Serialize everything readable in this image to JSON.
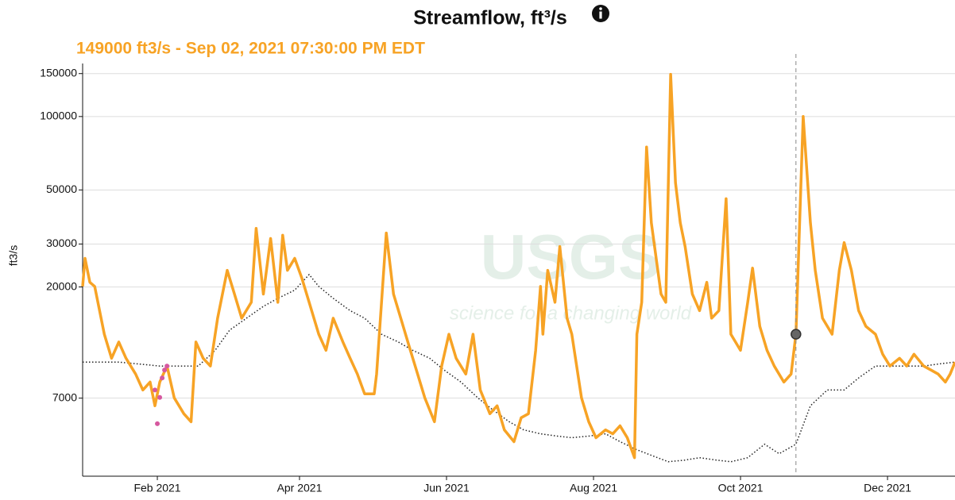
{
  "chart_data": {
    "type": "line",
    "title": "Streamflow, ft³/s",
    "subtitle": "149000 ft3/s - Sep 02, 2021 07:30:00 PM EDT",
    "ylabel": "ft3/s",
    "yscale": "log",
    "grid": true,
    "xlim": [
      0,
      362
    ],
    "ylim": [
      3350,
      165000
    ],
    "yticks": [
      7000,
      20000,
      30000,
      50000,
      100000,
      150000
    ],
    "xticks": [
      {
        "value": 31,
        "label": "Feb 2021"
      },
      {
        "value": 90,
        "label": "Apr 2021"
      },
      {
        "value": 151,
        "label": "Jun 2021"
      },
      {
        "value": 212,
        "label": "Aug 2021"
      },
      {
        "value": 273,
        "label": "Oct 2021"
      },
      {
        "value": 334,
        "label": "Dec 2021"
      }
    ],
    "watermark": {
      "logo": "USGS",
      "tagline": "science for a changing world"
    },
    "highlight": {
      "series": 0,
      "index": 103
    },
    "series": [
      {
        "color": "#f7a325",
        "style": "solid",
        "x": [
          0,
          1,
          3,
          5,
          9,
          12,
          15,
          18,
          22,
          25,
          28,
          30,
          32,
          35,
          38,
          42,
          45,
          47,
          50,
          53,
          56,
          60,
          63,
          66,
          70,
          72,
          75,
          78,
          81,
          83,
          85,
          88,
          91,
          94,
          98,
          101,
          104,
          108,
          111,
          114,
          117,
          121,
          122,
          126,
          129,
          132,
          136,
          139,
          142,
          146,
          149,
          152,
          155,
          159,
          162,
          165,
          169,
          172,
          175,
          179,
          182,
          185,
          188,
          190,
          191,
          193,
          196,
          198,
          201,
          203,
          207,
          210,
          213,
          217,
          220,
          223,
          226,
          229,
          230,
          232,
          234,
          236,
          240,
          242,
          244,
          246,
          248,
          250,
          253,
          256,
          259,
          261,
          264,
          267,
          269,
          273,
          276,
          278,
          281,
          284,
          287,
          291,
          294,
          296,
          299,
          302,
          304,
          307,
          311,
          314,
          316,
          319,
          322,
          325,
          329,
          332,
          335,
          339,
          342,
          345,
          349,
          352,
          355,
          358,
          360,
          362
        ],
        "values": [
          20100,
          26200,
          20900,
          20100,
          12800,
          10200,
          11900,
          10200,
          8790,
          7560,
          8150,
          6510,
          8150,
          9480,
          7020,
          6040,
          5600,
          11900,
          10200,
          9480,
          14900,
          23400,
          18700,
          14900,
          17300,
          34800,
          18700,
          31600,
          17300,
          32600,
          23400,
          26200,
          21700,
          17300,
          12800,
          11000,
          14900,
          11900,
          10200,
          8790,
          7290,
          7290,
          8790,
          33300,
          18700,
          14900,
          11000,
          8790,
          7020,
          5600,
          9480,
          12800,
          10200,
          8790,
          12800,
          7560,
          6040,
          6510,
          5190,
          4640,
          5820,
          6040,
          11000,
          20100,
          12800,
          23400,
          17300,
          29300,
          14900,
          12800,
          7020,
          5600,
          4820,
          5190,
          5000,
          5390,
          4820,
          3990,
          12800,
          17300,
          75000,
          36700,
          18700,
          17300,
          149000,
          53500,
          36700,
          29300,
          18700,
          16000,
          20900,
          14900,
          16000,
          46000,
          12800,
          11000,
          17300,
          23900,
          13800,
          11000,
          9480,
          8150,
          8790,
          12800,
          100000,
          36700,
          23400,
          14900,
          12800,
          23400,
          30400,
          23400,
          16000,
          13800,
          12800,
          10600,
          9480,
          10200,
          9480,
          10600,
          9480,
          9130,
          8790,
          8150,
          8790,
          9840
        ]
      },
      {
        "color": "#222222",
        "style": "dotted",
        "x": [
          0,
          15,
          32,
          48,
          55,
          61,
          68,
          75,
          81,
          88,
          94,
          98,
          104,
          111,
          117,
          124,
          131,
          137,
          144,
          150,
          157,
          164,
          170,
          177,
          183,
          190,
          197,
          203,
          210,
          217,
          223,
          230,
          236,
          243,
          250,
          256,
          263,
          269,
          276,
          283,
          289,
          296,
          302,
          309,
          316,
          322,
          329,
          335,
          342,
          349,
          355,
          362
        ],
        "values": [
          9840,
          9840,
          9480,
          9480,
          11000,
          13300,
          14900,
          16650,
          17970,
          19400,
          22500,
          20100,
          17970,
          16000,
          14900,
          12800,
          11900,
          11000,
          10200,
          9130,
          8150,
          7020,
          6290,
          5600,
          5190,
          5000,
          4890,
          4820,
          4890,
          5000,
          4640,
          4300,
          4080,
          3840,
          3900,
          3990,
          3900,
          3840,
          3990,
          4530,
          4140,
          4530,
          6510,
          7560,
          7560,
          8470,
          9480,
          9480,
          9480,
          9480,
          9660,
          9840
        ]
      },
      {
        "color": "#d6589f",
        "style": "points",
        "x": [
          30,
          31,
          32,
          33,
          34,
          35
        ],
        "values": [
          7560,
          5500,
          7050,
          8470,
          9130,
          9480
        ]
      }
    ]
  }
}
